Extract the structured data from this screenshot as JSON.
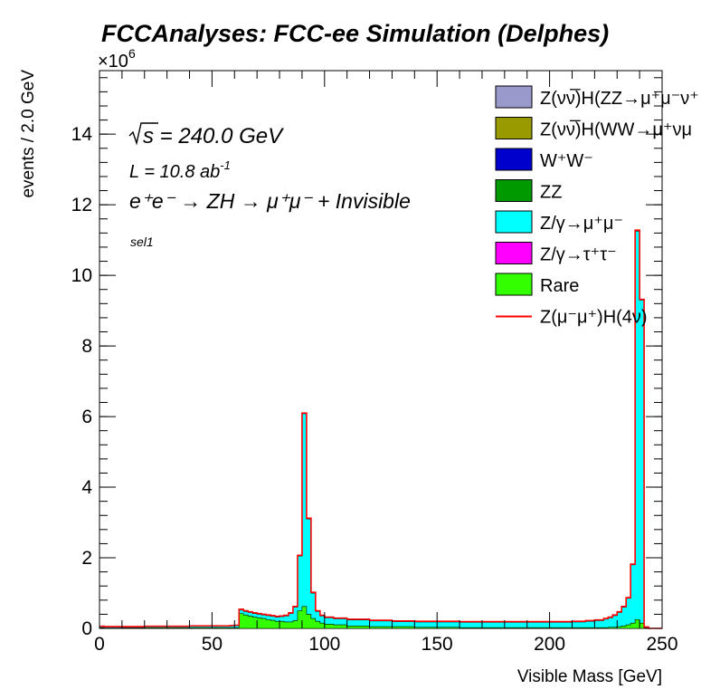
{
  "header": {
    "title": "FCCAnalyses: FCC-ee Simulation (Delphes)",
    "exponent": "×10",
    "exponent_power": "6"
  },
  "annotations": {
    "sqrt_s": "s = 240.0 GeV",
    "lumi": "L = 10.8 ab",
    "lumi_power": "-1",
    "process": "e⁺e⁻ → ZH → μ⁺μ⁻ + Invisible",
    "selection": "sel1"
  },
  "chart_data": {
    "type": "histogram",
    "stacked": true,
    "title": "FCCAnalyses: FCC-ee Simulation (Delphes)",
    "xlabel": "Visible Mass [GeV]",
    "ylabel": "events / 2.0 GeV",
    "xlim": [
      0,
      250
    ],
    "ylim": [
      0,
      15.8
    ],
    "y_scale_factor": "1e6",
    "bin_width": 2.0,
    "x_ticks": [
      0,
      50,
      100,
      150,
      200,
      250
    ],
    "y_ticks": [
      0,
      2,
      4,
      6,
      8,
      10,
      12,
      14
    ],
    "legend_position": "top-right",
    "colors": {
      "zh_zz": "#9999cc",
      "zh_ww": "#999900",
      "ww": "#0000cc",
      "zz": "#009900",
      "z_mumu": "#00ffff",
      "z_tautau": "#ff00ff",
      "rare": "#33ff00",
      "signal": "#ff0000"
    },
    "series": [
      {
        "key": "rare",
        "name": "Rare",
        "color": "#33ff00",
        "points": [
          [
            0,
            0.02
          ],
          [
            2,
            0.01
          ],
          [
            10,
            0.015
          ],
          [
            20,
            0.02
          ],
          [
            40,
            0.02
          ],
          [
            58,
            0.02
          ],
          [
            60,
            0.02
          ],
          [
            62,
            0.42
          ],
          [
            64,
            0.38
          ],
          [
            66,
            0.35
          ],
          [
            68,
            0.32
          ],
          [
            70,
            0.3
          ],
          [
            72,
            0.28
          ],
          [
            74,
            0.25
          ],
          [
            76,
            0.23
          ],
          [
            78,
            0.2
          ],
          [
            80,
            0.2
          ],
          [
            82,
            0.18
          ],
          [
            84,
            0.18
          ],
          [
            86,
            0.22
          ],
          [
            88,
            0.5
          ],
          [
            90,
            0.62
          ],
          [
            92,
            0.4
          ],
          [
            94,
            0.28
          ],
          [
            96,
            0.2
          ],
          [
            98,
            0.15
          ],
          [
            100,
            0.12
          ],
          [
            104,
            0.1
          ],
          [
            110,
            0.07
          ],
          [
            120,
            0.05
          ],
          [
            140,
            0.03
          ],
          [
            160,
            0.02
          ],
          [
            200,
            0.02
          ],
          [
            220,
            0.02
          ],
          [
            226,
            0.03
          ],
          [
            230,
            0.05
          ],
          [
            232,
            0.07
          ],
          [
            234,
            0.1
          ],
          [
            236,
            0.15
          ],
          [
            238,
            0.25
          ],
          [
            240,
            0.15
          ],
          [
            242,
            0.01
          ],
          [
            244,
            0.0
          ]
        ]
      },
      {
        "key": "z_tautau",
        "name": "Z/γ→τ⁺τ⁻",
        "color": "#ff00ff",
        "points": [
          [
            0,
            0.0
          ],
          [
            250,
            0.0
          ]
        ]
      },
      {
        "key": "z_mumu",
        "name": "Z/γ→μ⁺μ⁻",
        "color": "#00ffff",
        "points": [
          [
            0,
            0.05
          ],
          [
            2,
            0.04
          ],
          [
            10,
            0.04
          ],
          [
            20,
            0.05
          ],
          [
            40,
            0.06
          ],
          [
            58,
            0.07
          ],
          [
            60,
            0.08
          ],
          [
            62,
            0.52
          ],
          [
            64,
            0.48
          ],
          [
            66,
            0.45
          ],
          [
            68,
            0.42
          ],
          [
            70,
            0.4
          ],
          [
            72,
            0.38
          ],
          [
            74,
            0.36
          ],
          [
            76,
            0.34
          ],
          [
            78,
            0.32
          ],
          [
            80,
            0.33
          ],
          [
            82,
            0.35
          ],
          [
            84,
            0.42
          ],
          [
            86,
            0.6
          ],
          [
            88,
            2.05
          ],
          [
            90,
            6.08
          ],
          [
            92,
            3.1
          ],
          [
            94,
            1.0
          ],
          [
            96,
            0.48
          ],
          [
            98,
            0.35
          ],
          [
            100,
            0.3
          ],
          [
            104,
            0.27
          ],
          [
            110,
            0.24
          ],
          [
            120,
            0.21
          ],
          [
            130,
            0.19
          ],
          [
            140,
            0.18
          ],
          [
            150,
            0.18
          ],
          [
            160,
            0.17
          ],
          [
            170,
            0.17
          ],
          [
            180,
            0.17
          ],
          [
            190,
            0.17
          ],
          [
            200,
            0.17
          ],
          [
            210,
            0.18
          ],
          [
            216,
            0.2
          ],
          [
            220,
            0.22
          ],
          [
            224,
            0.26
          ],
          [
            226,
            0.3
          ],
          [
            228,
            0.36
          ],
          [
            230,
            0.45
          ],
          [
            232,
            0.6
          ],
          [
            234,
            0.85
          ],
          [
            236,
            1.8
          ],
          [
            238,
            11.25
          ],
          [
            240,
            9.3
          ],
          [
            242,
            0.02
          ],
          [
            244,
            0.0
          ]
        ]
      },
      {
        "key": "signal",
        "name": "Z(μ⁻μ⁺)H(4ν)",
        "color": "#ff0000",
        "points": [
          [
            0,
            0.06
          ],
          [
            2,
            0.05
          ],
          [
            10,
            0.05
          ],
          [
            20,
            0.06
          ],
          [
            40,
            0.07
          ],
          [
            58,
            0.08
          ],
          [
            60,
            0.09
          ],
          [
            62,
            0.54
          ],
          [
            64,
            0.5
          ],
          [
            66,
            0.47
          ],
          [
            68,
            0.44
          ],
          [
            70,
            0.42
          ],
          [
            72,
            0.4
          ],
          [
            74,
            0.38
          ],
          [
            76,
            0.36
          ],
          [
            78,
            0.34
          ],
          [
            80,
            0.35
          ],
          [
            82,
            0.37
          ],
          [
            84,
            0.44
          ],
          [
            86,
            0.62
          ],
          [
            88,
            2.07
          ],
          [
            90,
            6.1
          ],
          [
            92,
            3.12
          ],
          [
            94,
            1.02
          ],
          [
            96,
            0.5
          ],
          [
            98,
            0.37
          ],
          [
            100,
            0.32
          ],
          [
            104,
            0.29
          ],
          [
            110,
            0.26
          ],
          [
            120,
            0.23
          ],
          [
            130,
            0.21
          ],
          [
            140,
            0.2
          ],
          [
            150,
            0.2
          ],
          [
            160,
            0.19
          ],
          [
            170,
            0.19
          ],
          [
            180,
            0.19
          ],
          [
            190,
            0.19
          ],
          [
            200,
            0.19
          ],
          [
            210,
            0.2
          ],
          [
            216,
            0.22
          ],
          [
            220,
            0.24
          ],
          [
            224,
            0.28
          ],
          [
            226,
            0.32
          ],
          [
            228,
            0.38
          ],
          [
            230,
            0.47
          ],
          [
            232,
            0.62
          ],
          [
            234,
            0.87
          ],
          [
            236,
            1.82
          ],
          [
            238,
            11.28
          ],
          [
            240,
            9.32
          ],
          [
            242,
            0.04
          ],
          [
            244,
            0.0
          ]
        ]
      }
    ],
    "legend": [
      {
        "label": "Z(νν̅)H(ZZ→μ⁺μ⁻ν⁺",
        "swatch": "box",
        "color": "#9999cc"
      },
      {
        "label": "Z(νν̅)H(WW→μ⁺νμ",
        "swatch": "box",
        "color": "#999900"
      },
      {
        "label": "W⁺W⁻",
        "swatch": "box",
        "color": "#0000cc"
      },
      {
        "label": "ZZ",
        "swatch": "box",
        "color": "#009900"
      },
      {
        "label": "Z/γ→μ⁺μ⁻",
        "swatch": "box",
        "color": "#00ffff"
      },
      {
        "label": "Z/γ→τ⁺τ⁻",
        "swatch": "box",
        "color": "#ff00ff"
      },
      {
        "label": "Rare",
        "swatch": "box",
        "color": "#33ff00"
      },
      {
        "label": "Z(μ⁻μ⁺)H(4ν)",
        "swatch": "line",
        "color": "#ff0000"
      }
    ]
  }
}
